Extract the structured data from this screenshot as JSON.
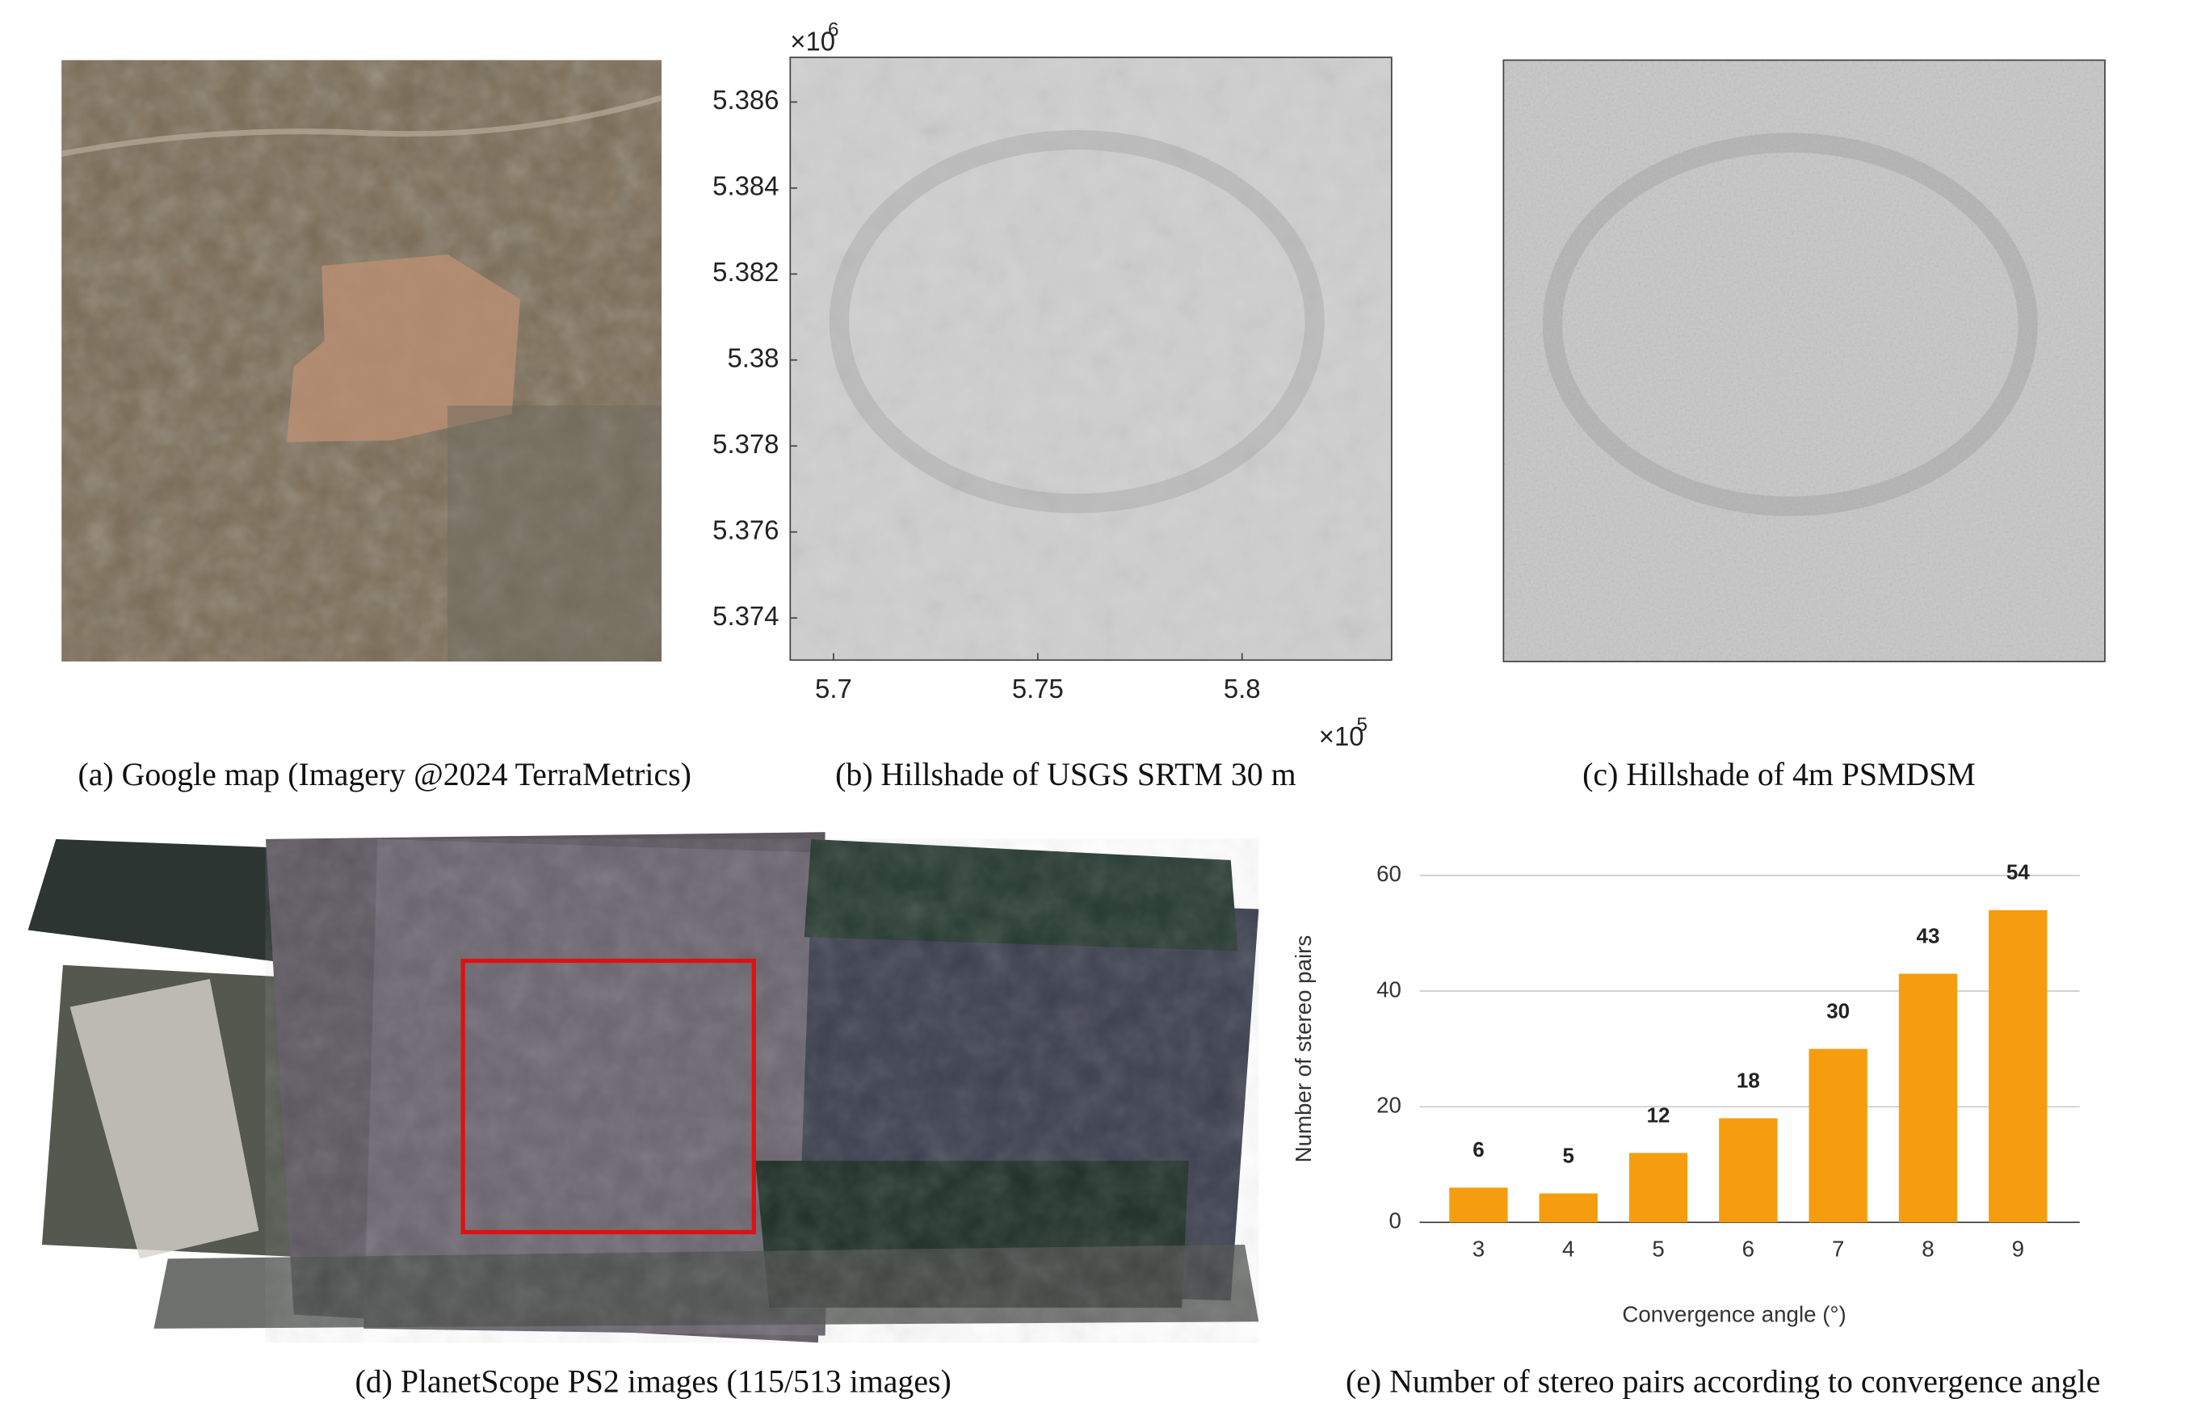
{
  "captions": {
    "a": "(a) Google map (Imagery @2024 TerraMetrics)",
    "b": "(b) Hillshade of USGS SRTM 30 m",
    "c": "(c) Hillshade of 4m PSMDSM",
    "d": "(d) PlanetScope PS2 images (115/513 images)",
    "e": "(e) Number of stereo pairs according to convergence angle"
  },
  "chart_data": [
    {
      "type": "image",
      "xlim": [
        5.6894,
        5.8366
      ],
      "ylim": [
        5.37302,
        5.38704
      ],
      "xticks": [
        5.7,
        5.75,
        5.8
      ],
      "yticks": [
        5.374,
        5.376,
        5.378,
        5.38,
        5.382,
        5.384,
        5.386
      ],
      "x_multiplier": "×10",
      "x_exponent": "5",
      "y_multiplier": "×10",
      "y_exponent": "6"
    },
    {
      "type": "bar",
      "x_label": "Convergence angle (°)",
      "y_label": "Number of stereo pairs",
      "categories": [
        "3",
        "4",
        "5",
        "6",
        "7",
        "8",
        "9"
      ],
      "values": [
        6,
        5,
        12,
        18,
        30,
        43,
        54
      ],
      "color": "#f59d0e",
      "ylim": [
        0,
        60
      ],
      "yticks": [
        0,
        20,
        40,
        60
      ],
      "grid": true
    }
  ]
}
